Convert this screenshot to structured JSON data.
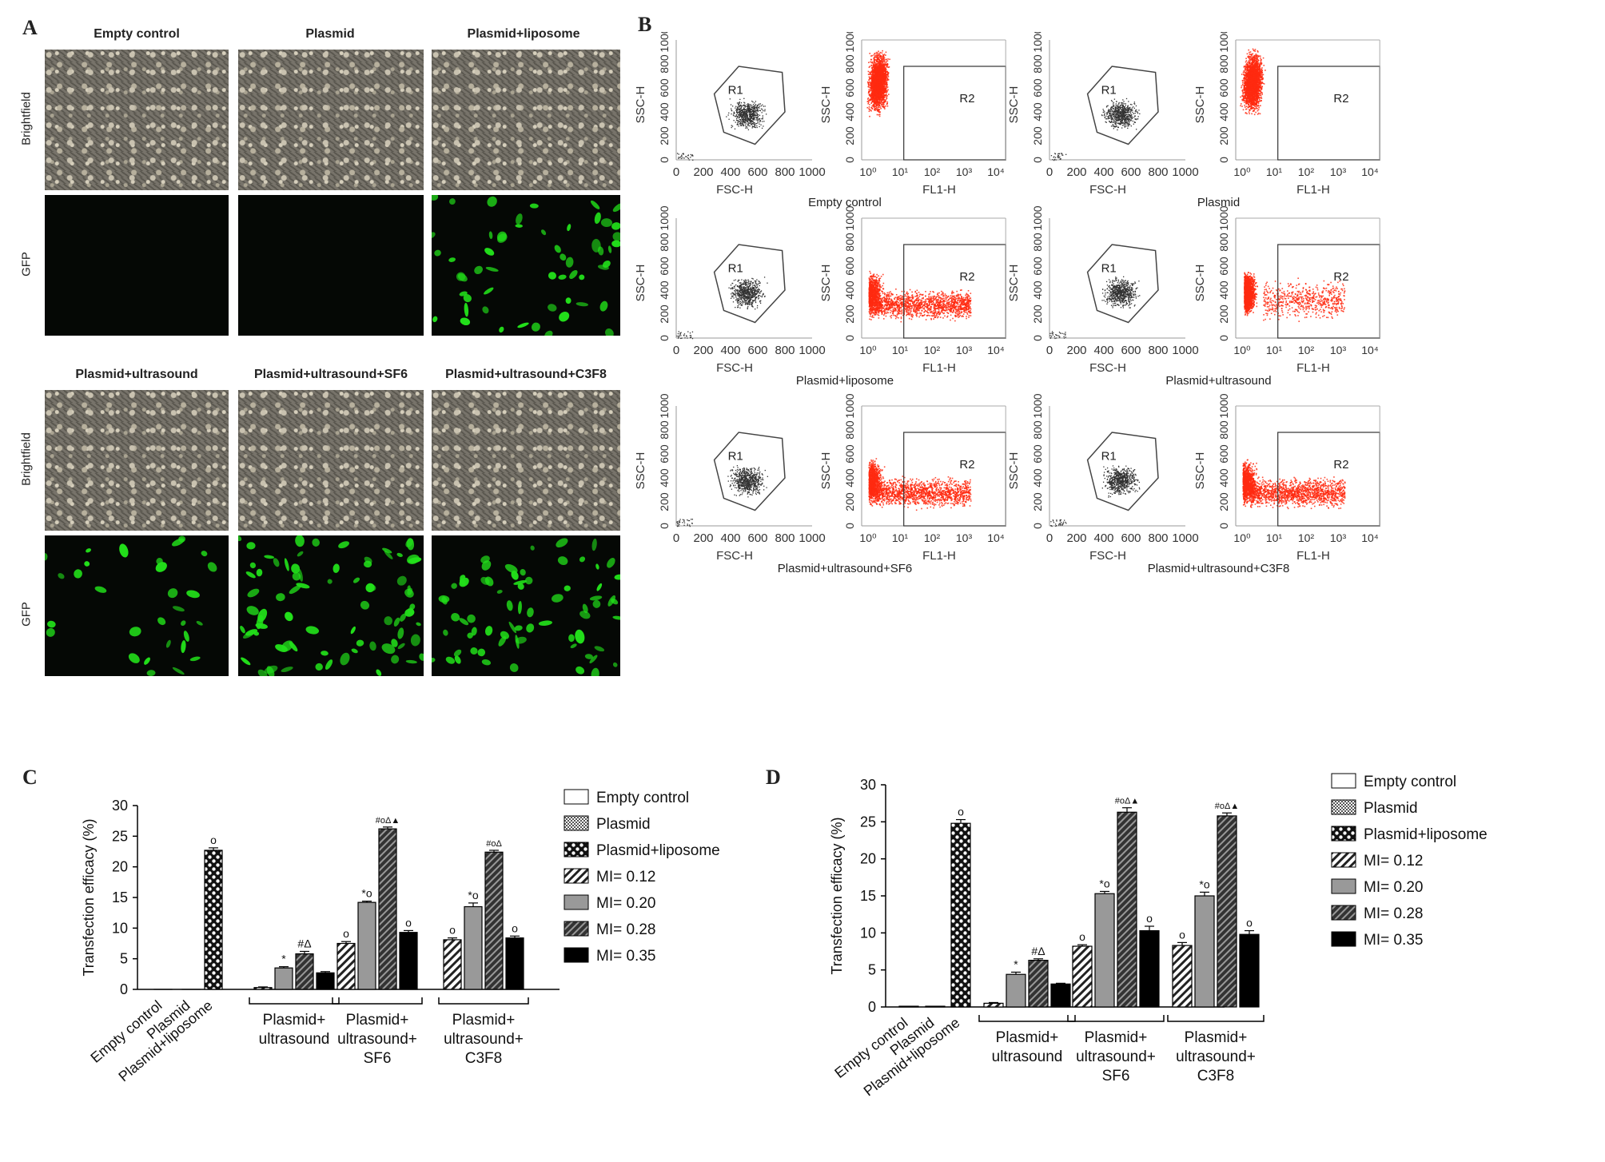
{
  "panels": {
    "A": "A",
    "B": "B",
    "C": "C",
    "D": "D"
  },
  "panelA": {
    "top_titles": [
      "Empty control",
      "Plasmid",
      "Plasmid+liposome"
    ],
    "bottom_titles": [
      "Plasmid+ultrasound",
      "Plasmid+ultrasound+SF6",
      "Plasmid+ultrasound+C3F8"
    ],
    "row_labels": {
      "brightfield": "Brightfield",
      "gfp": "GFP"
    },
    "gfp_colors": {
      "background": "#050805",
      "signal": "#22e01a"
    }
  },
  "panelB": {
    "ssc_label": "SSC-H",
    "fsc_label": "FSC-H",
    "fl1_label": "FL1-H",
    "gate_r1": "R1",
    "gate_r2": "R2",
    "linear_ticks": [
      "0",
      "200",
      "400",
      "600",
      "800",
      "1000"
    ],
    "log_ticks": [
      "10⁰",
      "10¹",
      "10²",
      "10³",
      "10⁴"
    ],
    "groups": [
      "Empty control",
      "Plasmid",
      "Plasmid+liposome",
      "Plasmid+ultrasound",
      "Plasmid+ultrasound+SF6",
      "Plasmid+ultrasound+C3F8"
    ],
    "dot_colors": {
      "scatter": "#333333",
      "fluorescence": "#ff2a10"
    }
  },
  "legend": [
    "Empty control",
    "Plasmid",
    "Plasmid+liposome",
    "MI= 0.12",
    "MI= 0.20",
    "MI= 0.28",
    "MI= 0.35"
  ],
  "chart_data": [
    {
      "type": "bar",
      "panel": "C",
      "ylabel": "Transfection efficacy (%)",
      "ylim": [
        0,
        30
      ],
      "yticks": [
        0,
        5,
        10,
        15,
        20,
        25,
        30
      ],
      "single_categories": [
        "Empty control",
        "Plasmid",
        "Plasmid+liposome"
      ],
      "single_values": [
        0,
        0,
        22.7
      ],
      "single_errors": [
        0,
        0,
        0.4
      ],
      "single_sig": [
        "",
        "",
        "o"
      ],
      "group_labels": [
        [
          "Plasmid+",
          "ultrasound"
        ],
        [
          "Plasmid+",
          "ultrasound+",
          "SF6"
        ],
        [
          "Plasmid+",
          "ultrasound+",
          "C3F8"
        ]
      ],
      "mi_levels": [
        "MI= 0.12",
        "MI= 0.20",
        "MI= 0.28",
        "MI= 0.35"
      ],
      "group_values": [
        [
          0.3,
          3.5,
          5.8,
          2.7
        ],
        [
          7.5,
          14.2,
          26.2,
          9.3
        ],
        [
          8.1,
          13.5,
          22.4,
          8.4
        ]
      ],
      "group_errors": [
        [
          0.1,
          0.2,
          0.4,
          0.2
        ],
        [
          0.3,
          0.2,
          0.3,
          0.3
        ],
        [
          0.3,
          0.6,
          0.3,
          0.3
        ]
      ],
      "group_sig": [
        [
          "",
          "*",
          "#Δ",
          ""
        ],
        [
          "o",
          "*o",
          "#oΔ▲",
          "o"
        ],
        [
          "o",
          "*o",
          "#oΔ",
          "o"
        ]
      ]
    },
    {
      "type": "bar",
      "panel": "D",
      "ylabel": "Transfection efficacy (%)",
      "ylim": [
        0,
        30
      ],
      "yticks": [
        0,
        5,
        10,
        15,
        20,
        25,
        30
      ],
      "single_categories": [
        "Empty control",
        "Plasmid",
        "Plasmid+liposome"
      ],
      "single_values": [
        0.1,
        0.1,
        24.8
      ],
      "single_errors": [
        0,
        0,
        0.5
      ],
      "single_sig": [
        "",
        "",
        "o"
      ],
      "group_labels": [
        [
          "Plasmid+",
          "ultrasound"
        ],
        [
          "Plasmid+",
          "ultrasound+",
          "SF6"
        ],
        [
          "Plasmid+",
          "ultrasound+",
          "C3F8"
        ]
      ],
      "mi_levels": [
        "MI= 0.12",
        "MI= 0.20",
        "MI= 0.28",
        "MI= 0.35"
      ],
      "group_values": [
        [
          0.5,
          4.4,
          6.3,
          3.1
        ],
        [
          8.2,
          15.3,
          26.3,
          10.3
        ],
        [
          8.3,
          15.0,
          25.8,
          9.8
        ]
      ],
      "group_errors": [
        [
          0.1,
          0.3,
          0.2,
          0.1
        ],
        [
          0.2,
          0.3,
          0.6,
          0.6
        ],
        [
          0.4,
          0.5,
          0.4,
          0.5
        ]
      ],
      "group_sig": [
        [
          "",
          "*",
          "#Δ",
          ""
        ],
        [
          "o",
          "*o",
          "#oΔ▲",
          "o"
        ],
        [
          "o",
          "*o",
          "#oΔ▲",
          "o"
        ]
      ]
    }
  ]
}
